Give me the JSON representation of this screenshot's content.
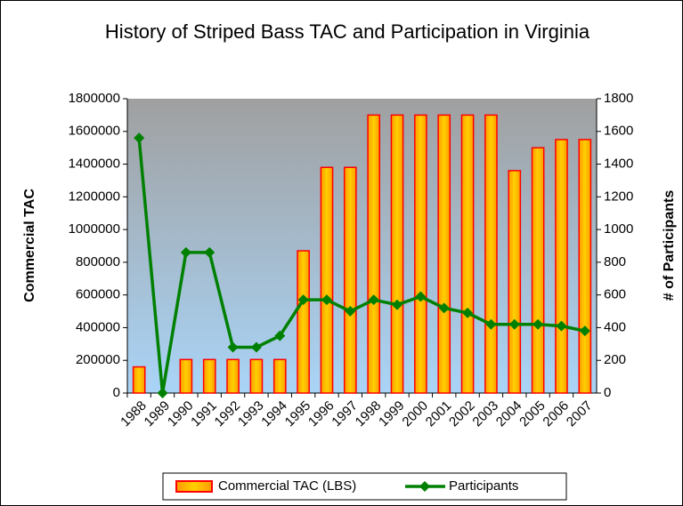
{
  "chart_data": {
    "type": "bar",
    "title": "History of Striped Bass TAC and Participation in Virginia",
    "y_label": "Commercial TAC",
    "y2_label": "# of Participants",
    "categories": [
      "1988",
      "1989",
      "1990",
      "1991",
      "1992",
      "1993",
      "1994",
      "1995",
      "1996",
      "1997",
      "1998",
      "1999",
      "2000",
      "2001",
      "2002",
      "2003",
      "2004",
      "2005",
      "2006",
      "2007"
    ],
    "series": [
      {
        "name": "Commercial TAC (LBS)",
        "type": "bar",
        "color": "#ffa500",
        "edge_color": "#ff0000",
        "values": [
          160000,
          0,
          205000,
          205000,
          205000,
          205000,
          205000,
          870000,
          1380000,
          1380000,
          1700000,
          1700000,
          1700000,
          1700000,
          1700000,
          1700000,
          1360000,
          1500000,
          1550000,
          1550000
        ]
      },
      {
        "name": "Participants",
        "type": "line",
        "axis": "y2",
        "color": "#008000",
        "values": [
          1560,
          0,
          860,
          860,
          280,
          280,
          350,
          570,
          570,
          500,
          570,
          540,
          590,
          520,
          490,
          420,
          420,
          420,
          410,
          380
        ]
      }
    ],
    "ylim": [
      0,
      1800000
    ],
    "yticks": [
      0,
      200000,
      400000,
      600000,
      800000,
      1000000,
      1200000,
      1400000,
      1600000,
      1800000
    ],
    "y2lim": [
      0,
      1800
    ],
    "y2ticks": [
      0,
      200,
      400,
      600,
      800,
      1000,
      1200,
      1400,
      1600,
      1800
    ],
    "grid": false,
    "legend": "bottom"
  }
}
